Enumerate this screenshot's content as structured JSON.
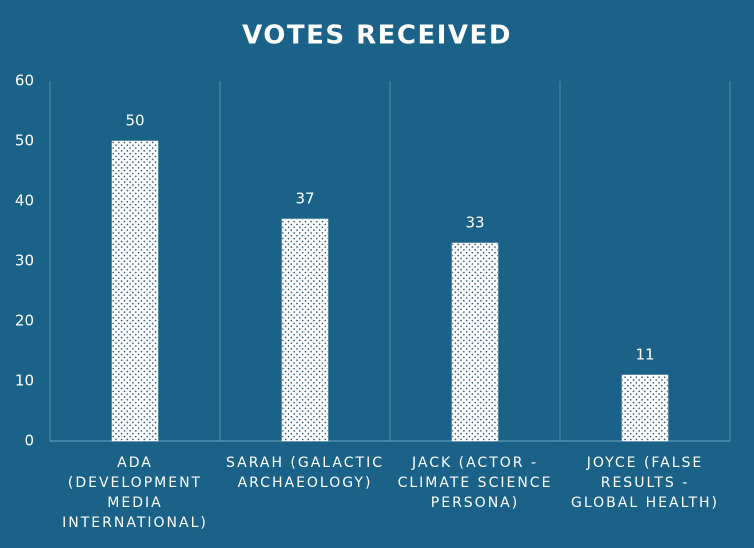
{
  "chart_data": {
    "type": "bar",
    "title": "VOTES RECEIVED",
    "categories": [
      "ADA (DEVELOPMENT MEDIA INTERNATIONAL)",
      "SARAH (GALACTIC ARCHAEOLOGY)",
      "JACK (ACTOR - CLIMATE SCIENCE PERSONA)",
      "JOYCE (FALSE RESULTS - GLOBAL HEALTH)"
    ],
    "values": [
      50,
      37,
      33,
      11
    ],
    "color": "#ffffff",
    "ylim": [
      0,
      60
    ],
    "yticks": [
      0,
      10,
      20,
      30,
      40,
      50,
      60
    ]
  }
}
